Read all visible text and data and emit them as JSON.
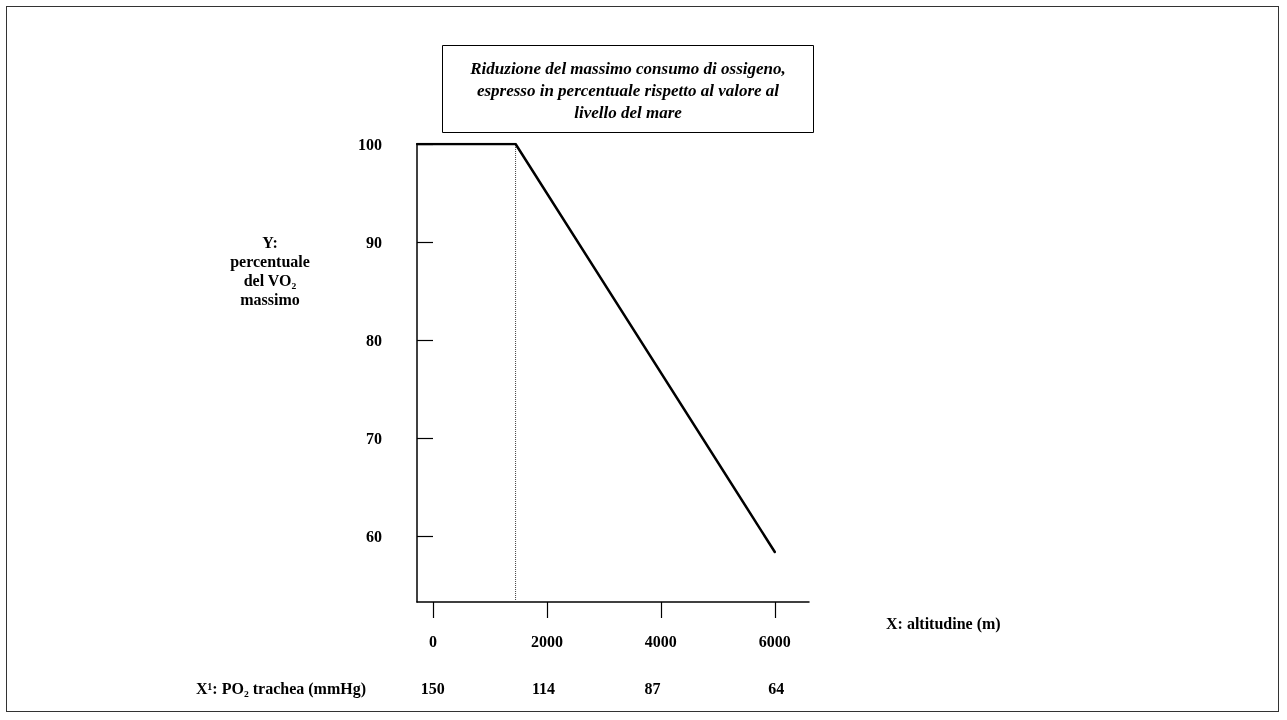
{
  "chart_data": {
    "type": "line",
    "title": "Riduzione del massimo consumo di ossigeno,\nespresso in percentuale rispetto al valore al\nlivello del mare",
    "xlabel": "X: altitudine (m)",
    "ylabel": "Y:\npercentuale\ndel VO₂\nmassimo",
    "x2label": "X¹: PO₂ trachea (mmHg)",
    "series": [
      {
        "color": "#000000",
        "x": [
          -276,
          1450,
          6000
        ],
        "values": [
          100,
          100,
          58.4
        ]
      }
    ],
    "xlim": [
      -280,
      6600
    ],
    "xticks": [
      0,
      2000,
      4000,
      6000
    ],
    "x2lim": [
      156,
      59
    ],
    "x2ticks": [
      150,
      114,
      87,
      64
    ],
    "ylim": [
      53.3,
      100
    ],
    "yticks": [
      60,
      70,
      80,
      90,
      100
    ],
    "ref_lines": [
      {
        "axis": "x",
        "value": 1450,
        "color": "#444444",
        "line_style": "dotted"
      }
    ],
    "log": "x2",
    "marker": "none",
    "line_style": "solid"
  }
}
